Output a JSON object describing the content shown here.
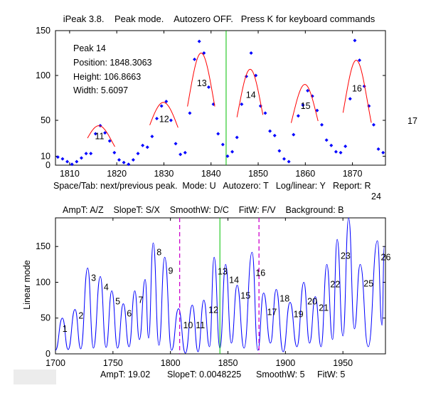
{
  "window": {
    "title": "iPeak 3.8.    Peak mode.    Autozero OFF.   Press K for keyboard commands"
  },
  "upper_panel": {
    "info_lines": [
      "Peak 14",
      "Position: 1848.3063",
      "Height: 106.8663",
      "Width: 5.6097"
    ],
    "help_line": "Space/Tab: next/previous peak.  Mode: U   Autozero: T   Log/linear: Y   Report: R",
    "edge_peak_label": "17",
    "colors": {
      "data": "#0000ff",
      "fit": "#ff0000",
      "cursor": "#00c000"
    }
  },
  "lower_panel": {
    "help_line": "AmpT: A/Z    SlopeT: S/X    SmoothW: D/C    FitW: F/V    Background: B",
    "top_peak_label": "24",
    "ylabel": "Linear mode",
    "status": {
      "ampt": "AmpT: 19.02",
      "slopet": "SlopeT: 0.0048225",
      "smoothw": "SmoothW: 5",
      "fitw": "FitW: 5"
    },
    "colors": {
      "signal": "#0000ff",
      "cursor": "#00c000",
      "markers": "#cc00cc"
    }
  },
  "chart_data": [
    {
      "type": "scatter",
      "xlim": [
        1807,
        1877
      ],
      "ylim": [
        0,
        150
      ],
      "x_ticks": [
        1810,
        1820,
        1830,
        1840,
        1850,
        1860,
        1870
      ],
      "y_ticks": [
        0,
        10,
        50,
        100,
        150
      ],
      "cursor_x": 1843.2,
      "points": [
        [
          1807.5,
          9
        ],
        [
          1808.5,
          7
        ],
        [
          1809.5,
          4
        ],
        [
          1810.5,
          1
        ],
        [
          1811.5,
          4
        ],
        [
          1812.5,
          8
        ],
        [
          1813.5,
          13
        ],
        [
          1814.5,
          13
        ],
        [
          1815.5,
          35
        ],
        [
          1816.5,
          44
        ],
        [
          1817.5,
          36
        ],
        [
          1818.5,
          27
        ],
        [
          1819.5,
          14
        ],
        [
          1820.5,
          6
        ],
        [
          1821.5,
          3
        ],
        [
          1822.5,
          1
        ],
        [
          1823.5,
          6
        ],
        [
          1824.5,
          13
        ],
        [
          1825.5,
          22
        ],
        [
          1826.5,
          20
        ],
        [
          1827.5,
          32
        ],
        [
          1828.5,
          52
        ],
        [
          1829.5,
          66
        ],
        [
          1830.5,
          71
        ],
        [
          1831.5,
          50
        ],
        [
          1832.5,
          24
        ],
        [
          1833.5,
          12
        ],
        [
          1834.5,
          14
        ],
        [
          1835.5,
          58
        ],
        [
          1836.5,
          118
        ],
        [
          1837.5,
          138
        ],
        [
          1838.5,
          125
        ],
        [
          1839.5,
          87
        ],
        [
          1840.5,
          68
        ],
        [
          1841.5,
          35
        ],
        [
          1842.5,
          23
        ],
        [
          1843.5,
          10
        ],
        [
          1844.5,
          15
        ],
        [
          1845.5,
          31
        ],
        [
          1846.5,
          68
        ],
        [
          1847.5,
          99
        ],
        [
          1848.5,
          125
        ],
        [
          1849.5,
          100
        ],
        [
          1850.5,
          66
        ],
        [
          1851.5,
          58
        ],
        [
          1852.5,
          38
        ],
        [
          1853.5,
          33
        ],
        [
          1854.5,
          16
        ],
        [
          1855.5,
          7
        ],
        [
          1856.5,
          4
        ],
        [
          1857.5,
          34
        ],
        [
          1858.5,
          55
        ],
        [
          1859.5,
          67
        ],
        [
          1860.5,
          83
        ],
        [
          1861.5,
          77
        ],
        [
          1862.5,
          61
        ],
        [
          1863.5,
          45
        ],
        [
          1864.5,
          28
        ],
        [
          1865.5,
          22
        ],
        [
          1866.5,
          15
        ],
        [
          1867.5,
          14
        ],
        [
          1868.5,
          21
        ],
        [
          1869.5,
          74
        ],
        [
          1870.5,
          139
        ],
        [
          1871.5,
          117
        ],
        [
          1872.5,
          88
        ],
        [
          1873.5,
          66
        ],
        [
          1874.5,
          45
        ],
        [
          1875.5,
          18
        ],
        [
          1876.5,
          14
        ],
        [
          1877.5,
          13
        ]
      ],
      "fits": [
        {
          "label": "11",
          "center": 1816.2,
          "height": 44,
          "width": 6.5,
          "from": 1813.8,
          "to": 1819.6
        },
        {
          "label": "12",
          "center": 1829.9,
          "height": 70,
          "width": 7.2,
          "from": 1827,
          "to": 1833
        },
        {
          "label": "13",
          "center": 1837.9,
          "height": 125,
          "width": 6,
          "from": 1835,
          "to": 1840.8
        },
        {
          "label": "14",
          "center": 1848.3,
          "height": 106.9,
          "width": 5.6,
          "from": 1845.5,
          "to": 1851
        },
        {
          "label": "15",
          "center": 1859.9,
          "height": 90,
          "width": 6,
          "from": 1857,
          "to": 1862.7
        },
        {
          "label": "16",
          "center": 1870.8,
          "height": 117,
          "width": 5.6,
          "from": 1868,
          "to": 1874
        }
      ]
    },
    {
      "type": "line",
      "xlim": [
        1700,
        1987
      ],
      "ylim": [
        0,
        190
      ],
      "x_ticks": [
        1700,
        1750,
        1800,
        1850,
        1900,
        1950
      ],
      "y_ticks": [
        0,
        50,
        100,
        150
      ],
      "ylabel": "Linear mode",
      "cursor_x": 1843,
      "marker_x": [
        1808,
        1877
      ],
      "peaks": [
        {
          "x": 1706,
          "y": 50
        },
        {
          "x": 1717,
          "y": 62
        },
        {
          "x": 1728,
          "y": 120
        },
        {
          "x": 1739,
          "y": 108
        },
        {
          "x": 1749,
          "y": 88
        },
        {
          "x": 1759,
          "y": 70
        },
        {
          "x": 1769,
          "y": 88
        },
        {
          "x": 1778,
          "y": 104
        },
        {
          "x": 1785,
          "y": 155
        },
        {
          "x": 1795,
          "y": 135
        },
        {
          "x": 1807,
          "y": 63
        },
        {
          "x": 1819,
          "y": 68
        },
        {
          "x": 1829,
          "y": 75
        },
        {
          "x": 1838,
          "y": 135
        },
        {
          "x": 1848,
          "y": 125
        },
        {
          "x": 1858,
          "y": 96
        },
        {
          "x": 1871,
          "y": 142
        },
        {
          "x": 1881,
          "y": 85
        },
        {
          "x": 1892,
          "y": 90
        },
        {
          "x": 1904,
          "y": 72
        },
        {
          "x": 1916,
          "y": 100
        },
        {
          "x": 1926,
          "y": 80
        },
        {
          "x": 1936,
          "y": 125
        },
        {
          "x": 1945,
          "y": 160
        },
        {
          "x": 1955,
          "y": 190
        },
        {
          "x": 1965,
          "y": 125
        },
        {
          "x": 1980,
          "y": 158
        },
        {
          "x": 1986,
          "y": 150
        }
      ],
      "troughs": [
        {
          "x": 1700,
          "y": 5
        },
        {
          "x": 1711,
          "y": 6
        },
        {
          "x": 1722,
          "y": 7
        },
        {
          "x": 1733,
          "y": 8
        },
        {
          "x": 1744,
          "y": 9
        },
        {
          "x": 1754,
          "y": 8
        },
        {
          "x": 1764,
          "y": 10
        },
        {
          "x": 1773,
          "y": 20
        },
        {
          "x": 1781,
          "y": 22
        },
        {
          "x": 1790,
          "y": 12
        },
        {
          "x": 1801,
          "y": 5
        },
        {
          "x": 1813,
          "y": 1
        },
        {
          "x": 1824,
          "y": 3
        },
        {
          "x": 1834,
          "y": 10
        },
        {
          "x": 1843,
          "y": 8
        },
        {
          "x": 1853,
          "y": 15
        },
        {
          "x": 1864,
          "y": 8
        },
        {
          "x": 1876,
          "y": 5
        },
        {
          "x": 1887,
          "y": 15
        },
        {
          "x": 1898,
          "y": 3
        },
        {
          "x": 1910,
          "y": 10
        },
        {
          "x": 1921,
          "y": 15
        },
        {
          "x": 1931,
          "y": 10
        },
        {
          "x": 1941,
          "y": 20
        },
        {
          "x": 1950,
          "y": 25
        },
        {
          "x": 1960,
          "y": 35
        },
        {
          "x": 1972,
          "y": 10
        },
        {
          "x": 1984,
          "y": 40
        }
      ],
      "peak_labels": [
        {
          "label": "1",
          "x": 1706,
          "y": 35
        },
        {
          "label": "2",
          "x": 1720,
          "y": 53
        },
        {
          "label": "3",
          "x": 1731,
          "y": 106
        },
        {
          "label": "4",
          "x": 1742,
          "y": 93
        },
        {
          "label": "5",
          "x": 1752,
          "y": 73
        },
        {
          "label": "6",
          "x": 1762,
          "y": 56
        },
        {
          "label": "7",
          "x": 1772,
          "y": 75
        },
        {
          "label": "8",
          "x": 1788,
          "y": 142
        },
        {
          "label": "9",
          "x": 1798,
          "y": 116
        },
        {
          "label": "10",
          "x": 1811,
          "y": 40
        },
        {
          "label": "11",
          "x": 1822,
          "y": 40
        },
        {
          "label": "12",
          "x": 1833,
          "y": 61
        },
        {
          "label": "13",
          "x": 1841,
          "y": 115
        },
        {
          "label": "14",
          "x": 1851,
          "y": 103
        },
        {
          "label": "15",
          "x": 1861,
          "y": 81
        },
        {
          "label": "16",
          "x": 1874,
          "y": 113
        },
        {
          "label": "17",
          "x": 1884,
          "y": 58
        },
        {
          "label": "18",
          "x": 1895,
          "y": 77
        },
        {
          "label": "19",
          "x": 1907,
          "y": 55
        },
        {
          "label": "20",
          "x": 1919,
          "y": 73
        },
        {
          "label": "21",
          "x": 1929,
          "y": 64
        },
        {
          "label": "22",
          "x": 1939,
          "y": 97
        },
        {
          "label": "23",
          "x": 1948,
          "y": 137
        },
        {
          "label": "25",
          "x": 1968,
          "y": 98
        },
        {
          "label": "26",
          "x": 1983,
          "y": 135
        }
      ]
    }
  ]
}
